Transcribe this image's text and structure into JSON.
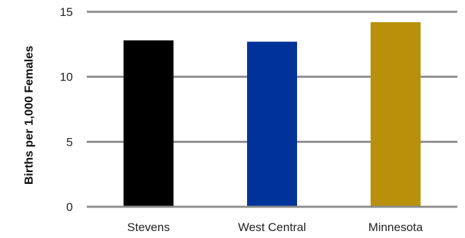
{
  "chart_data": {
    "type": "bar",
    "title": "",
    "xlabel": "",
    "ylabel": "Births per 1,000 Females",
    "categories": [
      "Stevens",
      "West Central",
      "Minnesota"
    ],
    "values": [
      12.8,
      12.7,
      14.2
    ],
    "colors": [
      "#000000",
      "#003399",
      "#b8900a"
    ],
    "ylim": [
      0,
      15
    ],
    "yticks": [
      0,
      5,
      10,
      15
    ],
    "grid": true,
    "legend": "none"
  }
}
